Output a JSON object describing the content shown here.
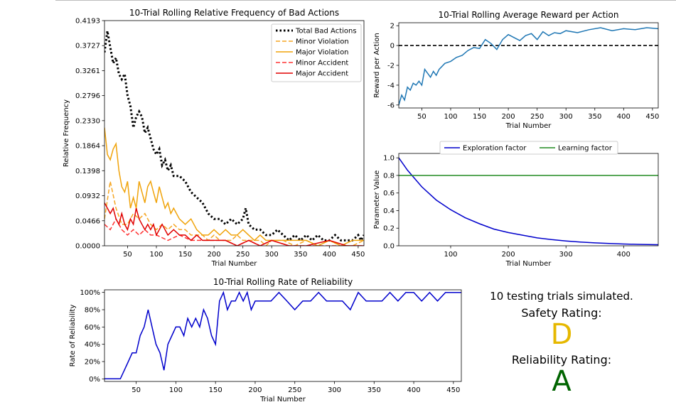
{
  "summary": {
    "trials_text": "10 testing trials simulated.",
    "safety_label": "Safety Rating:",
    "safety_grade": "D",
    "safety_color": "#e6b800",
    "reliability_label": "Reliability Rating:",
    "reliability_grade": "A",
    "reliability_color": "#006400"
  },
  "chart_data": [
    {
      "type": "line",
      "title": "10-Trial Rolling Relative Frequency of Bad Actions",
      "xlabel": "Trial Number",
      "ylabel": "Relative Frequency",
      "xlim": [
        10,
        460
      ],
      "ylim": [
        0,
        0.4193
      ],
      "xticks": [
        50,
        100,
        150,
        200,
        250,
        300,
        350,
        400,
        450
      ],
      "yticks": [
        "0.0000",
        "0.0466",
        "0.0932",
        "0.1398",
        "0.1864",
        "0.2330",
        "0.2796",
        "0.3261",
        "0.3727",
        "0.4193"
      ],
      "legend_position": "top-right",
      "series": [
        {
          "name": "Total Bad Actions",
          "color": "#000000",
          "style": "dotted",
          "x": [
            10,
            15,
            20,
            25,
            30,
            35,
            40,
            45,
            50,
            55,
            60,
            65,
            70,
            75,
            80,
            85,
            90,
            95,
            100,
            105,
            110,
            115,
            120,
            125,
            130,
            140,
            150,
            160,
            170,
            180,
            190,
            200,
            210,
            220,
            230,
            240,
            250,
            255,
            260,
            270,
            280,
            290,
            300,
            310,
            320,
            330,
            340,
            350,
            360,
            370,
            380,
            390,
            400,
            410,
            420,
            430,
            440,
            450,
            455,
            460
          ],
          "y": [
            0.36,
            0.4,
            0.37,
            0.34,
            0.35,
            0.32,
            0.31,
            0.32,
            0.28,
            0.26,
            0.22,
            0.24,
            0.25,
            0.24,
            0.21,
            0.22,
            0.2,
            0.18,
            0.17,
            0.18,
            0.15,
            0.16,
            0.14,
            0.15,
            0.13,
            0.13,
            0.12,
            0.1,
            0.09,
            0.08,
            0.06,
            0.05,
            0.05,
            0.04,
            0.05,
            0.04,
            0.05,
            0.07,
            0.04,
            0.03,
            0.03,
            0.02,
            0.02,
            0.03,
            0.02,
            0.01,
            0.02,
            0.01,
            0.02,
            0.01,
            0.02,
            0.01,
            0.01,
            0.02,
            0.01,
            0.01,
            0.01,
            0.02,
            0.01,
            0.02
          ]
        },
        {
          "name": "Minor Violation",
          "color": "#f5a623",
          "style": "dashed",
          "x": [
            10,
            20,
            30,
            40,
            50,
            60,
            70,
            80,
            90,
            100,
            110,
            120,
            130,
            140,
            150,
            160,
            170,
            180,
            190,
            200,
            210,
            220,
            230,
            240,
            250,
            260,
            270,
            280,
            290,
            300,
            320,
            340,
            360,
            380,
            400,
            420,
            440,
            460
          ],
          "y": [
            0.05,
            0.12,
            0.07,
            0.04,
            0.04,
            0.06,
            0.05,
            0.06,
            0.04,
            0.03,
            0.04,
            0.03,
            0.04,
            0.03,
            0.03,
            0.02,
            0.02,
            0.02,
            0.01,
            0.02,
            0.01,
            0.01,
            0.01,
            0.02,
            0.01,
            0.01,
            0.01,
            0.01,
            0.0,
            0.01,
            0.01,
            0.0,
            0.01,
            0.0,
            0.01,
            0.0,
            0.0,
            0.01
          ]
        },
        {
          "name": "Major Violation",
          "color": "#f0a30a",
          "style": "solid",
          "x": [
            10,
            15,
            20,
            25,
            30,
            35,
            40,
            45,
            50,
            55,
            60,
            65,
            70,
            75,
            80,
            85,
            90,
            95,
            100,
            105,
            110,
            115,
            120,
            125,
            130,
            140,
            150,
            160,
            170,
            180,
            190,
            200,
            210,
            220,
            230,
            240,
            250,
            260,
            270,
            280,
            290,
            300,
            320,
            340,
            360,
            380,
            400,
            420,
            440,
            460
          ],
          "y": [
            0.22,
            0.17,
            0.16,
            0.18,
            0.19,
            0.14,
            0.11,
            0.1,
            0.12,
            0.07,
            0.09,
            0.07,
            0.12,
            0.1,
            0.08,
            0.11,
            0.12,
            0.1,
            0.08,
            0.11,
            0.09,
            0.07,
            0.08,
            0.06,
            0.07,
            0.05,
            0.04,
            0.05,
            0.03,
            0.02,
            0.02,
            0.03,
            0.02,
            0.03,
            0.02,
            0.02,
            0.03,
            0.02,
            0.01,
            0.02,
            0.01,
            0.01,
            0.01,
            0.01,
            0.01,
            0.0,
            0.01,
            0.0,
            0.01,
            0.01
          ]
        },
        {
          "name": "Minor Accident",
          "color": "#ff3333",
          "style": "dashed",
          "x": [
            10,
            20,
            30,
            40,
            50,
            60,
            70,
            80,
            90,
            100,
            120,
            140,
            160,
            180,
            200,
            220,
            240,
            260,
            280,
            300,
            330,
            360,
            400,
            430,
            460
          ],
          "y": [
            0.04,
            0.03,
            0.05,
            0.03,
            0.02,
            0.03,
            0.02,
            0.03,
            0.02,
            0.02,
            0.01,
            0.02,
            0.01,
            0.01,
            0.01,
            0.01,
            0.0,
            0.01,
            0.0,
            0.01,
            0.0,
            0.0,
            0.0,
            0.0,
            0.0
          ]
        },
        {
          "name": "Major Accident",
          "color": "#e00000",
          "style": "solid",
          "x": [
            10,
            15,
            20,
            25,
            30,
            35,
            40,
            45,
            50,
            55,
            60,
            65,
            70,
            75,
            80,
            85,
            90,
            95,
            100,
            105,
            110,
            120,
            130,
            140,
            150,
            160,
            170,
            180,
            190,
            200,
            220,
            240,
            260,
            280,
            300,
            330,
            360,
            400,
            430,
            460
          ],
          "y": [
            0.08,
            0.07,
            0.06,
            0.07,
            0.05,
            0.04,
            0.06,
            0.04,
            0.03,
            0.05,
            0.04,
            0.07,
            0.05,
            0.04,
            0.03,
            0.04,
            0.03,
            0.04,
            0.02,
            0.03,
            0.04,
            0.02,
            0.03,
            0.02,
            0.02,
            0.01,
            0.02,
            0.01,
            0.01,
            0.01,
            0.01,
            0.0,
            0.01,
            0.0,
            0.01,
            0.0,
            0.0,
            0.01,
            0.0,
            0.0
          ]
        }
      ]
    },
    {
      "type": "line",
      "title": "10-Trial Rolling Average Reward per Action",
      "xlabel": "Trial Number",
      "ylabel": "Reward per Action",
      "xlim": [
        10,
        460
      ],
      "ylim": [
        -6.3,
        2.3
      ],
      "xticks": [
        50,
        100,
        150,
        200,
        250,
        300,
        350,
        400,
        450
      ],
      "yticks": [
        -6,
        -4,
        -2,
        0,
        2
      ],
      "reference_line": {
        "y": 0,
        "color": "#000000",
        "style": "dashed"
      },
      "series": [
        {
          "name": "",
          "color": "#1f77b4",
          "x": [
            10,
            15,
            20,
            25,
            30,
            35,
            40,
            45,
            50,
            55,
            60,
            65,
            70,
            75,
            80,
            90,
            100,
            110,
            120,
            130,
            140,
            150,
            160,
            170,
            180,
            190,
            200,
            210,
            220,
            230,
            240,
            250,
            260,
            270,
            280,
            290,
            300,
            320,
            340,
            360,
            380,
            400,
            420,
            440,
            460
          ],
          "y": [
            -6.0,
            -5.0,
            -5.5,
            -4.2,
            -4.5,
            -3.8,
            -4.0,
            -3.6,
            -4.0,
            -2.4,
            -2.8,
            -3.2,
            -2.6,
            -3.0,
            -2.4,
            -1.8,
            -1.6,
            -1.2,
            -1.0,
            -0.5,
            -0.2,
            -0.3,
            0.6,
            0.2,
            -0.4,
            0.6,
            1.1,
            0.8,
            0.5,
            1.0,
            1.2,
            0.6,
            1.4,
            1.0,
            1.3,
            1.2,
            1.5,
            1.3,
            1.6,
            1.8,
            1.5,
            1.7,
            1.6,
            1.8,
            1.7
          ]
        }
      ]
    },
    {
      "type": "line",
      "title": "",
      "xlabel": "Trial Number",
      "ylabel": "Parameter Value",
      "xlim": [
        10,
        460
      ],
      "ylim": [
        0,
        1.05
      ],
      "xticks": [
        100,
        200,
        300,
        400
      ],
      "yticks": [
        "0.0",
        "0.2",
        "0.4",
        "0.6",
        "0.8",
        "1.0"
      ],
      "legend_position": "top-center",
      "series": [
        {
          "name": "Exploration factor",
          "color": "#0000cc",
          "x": [
            10,
            25,
            50,
            75,
            100,
            125,
            150,
            175,
            200,
            225,
            250,
            275,
            300,
            325,
            350,
            375,
            400,
            425,
            460
          ],
          "y": [
            1.0,
            0.86,
            0.67,
            0.52,
            0.41,
            0.32,
            0.25,
            0.19,
            0.15,
            0.12,
            0.09,
            0.07,
            0.055,
            0.043,
            0.033,
            0.026,
            0.02,
            0.016,
            0.012
          ]
        },
        {
          "name": "Learning factor",
          "color": "#228b22",
          "x": [
            10,
            460
          ],
          "y": [
            0.8,
            0.8
          ]
        }
      ]
    },
    {
      "type": "line",
      "title": "10-Trial Rolling Rate of Reliability",
      "xlabel": "Trial Number",
      "ylabel": "Rate of Reliability",
      "xlim": [
        10,
        460
      ],
      "ylim": [
        -3,
        103
      ],
      "xticks": [
        50,
        100,
        150,
        200,
        250,
        300,
        350,
        400,
        450
      ],
      "yticks": [
        "0%",
        "20%",
        "40%",
        "60%",
        "80%",
        "100%"
      ],
      "series": [
        {
          "name": "",
          "color": "#0000cc",
          "x": [
            10,
            20,
            30,
            35,
            40,
            45,
            50,
            55,
            60,
            65,
            70,
            75,
            80,
            85,
            90,
            95,
            100,
            105,
            110,
            115,
            120,
            125,
            130,
            135,
            140,
            145,
            150,
            155,
            160,
            165,
            170,
            175,
            180,
            185,
            190,
            195,
            200,
            210,
            220,
            230,
            240,
            250,
            260,
            270,
            280,
            290,
            300,
            310,
            320,
            330,
            340,
            350,
            360,
            370,
            380,
            390,
            400,
            410,
            420,
            430,
            440,
            450,
            460
          ],
          "y": [
            0,
            0,
            0,
            10,
            20,
            30,
            30,
            50,
            60,
            80,
            60,
            40,
            30,
            10,
            40,
            50,
            60,
            60,
            50,
            70,
            60,
            70,
            60,
            80,
            70,
            50,
            40,
            90,
            100,
            80,
            90,
            90,
            100,
            90,
            100,
            80,
            90,
            90,
            90,
            100,
            90,
            80,
            90,
            90,
            100,
            90,
            90,
            90,
            80,
            100,
            90,
            90,
            90,
            100,
            90,
            100,
            100,
            90,
            100,
            90,
            100,
            100,
            100
          ]
        }
      ]
    }
  ]
}
